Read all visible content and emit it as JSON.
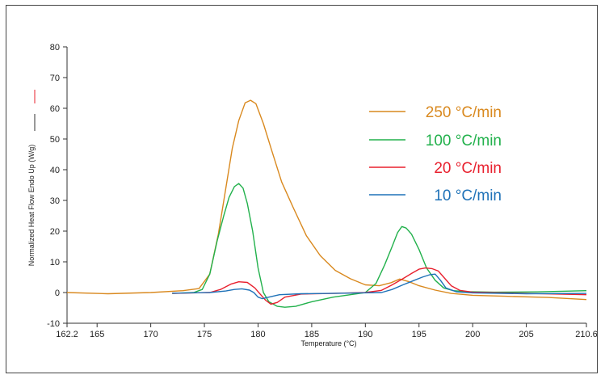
{
  "chart_data": {
    "type": "line",
    "xlabel": "Temperature (°C)",
    "ylabel": "Normalized Heat Flow Endo Up (W/g)",
    "xlim": [
      162.2,
      210.6
    ],
    "ylim": [
      -10,
      80
    ],
    "x_ticks": [
      162.2,
      165,
      170,
      175,
      180,
      185,
      190,
      195,
      200,
      205,
      210.6
    ],
    "x_tick_labels": [
      "162.2",
      "165",
      "170",
      "175",
      "180",
      "185",
      "190",
      "195",
      "200",
      "205",
      "210.6"
    ],
    "y_ticks": [
      -10,
      0,
      10,
      20,
      30,
      40,
      50,
      60,
      70,
      80
    ],
    "y_tick_labels": [
      "-10",
      "0",
      "10",
      "20",
      "30",
      "40",
      "50",
      "60",
      "70",
      "80"
    ],
    "grid": false,
    "legend_placement": "top-right",
    "series": [
      {
        "name": "250 °C/min",
        "color": "#d9891f",
        "x": [
          162.2,
          166,
          170,
          173,
          174.5,
          175.5,
          176.3,
          177,
          177.6,
          178.2,
          178.8,
          179.3,
          179.8,
          180.5,
          181.3,
          182.2,
          183.3,
          184.5,
          185.8,
          187.2,
          188.6,
          190,
          191.3,
          192.4,
          193.2,
          194,
          195,
          196.5,
          198,
          200,
          203,
          207,
          210.6
        ],
        "values": [
          0,
          -0.4,
          0,
          0.6,
          1.3,
          6,
          19,
          34,
          47,
          56,
          61.8,
          62.6,
          61.5,
          55,
          46,
          36,
          27.5,
          18.5,
          12,
          7.2,
          4.5,
          2.5,
          2.2,
          3.2,
          4.4,
          3.6,
          2.2,
          0.8,
          -0.3,
          -0.9,
          -1.2,
          -1.6,
          -2.3
        ]
      },
      {
        "name": "100 °C/min",
        "color": "#22b14c",
        "x": [
          172,
          174,
          174.8,
          175.5,
          176.2,
          176.8,
          177.3,
          177.8,
          178.2,
          178.6,
          179,
          179.5,
          180,
          180.5,
          181,
          181.8,
          182.5,
          183.5,
          185,
          187,
          189,
          190,
          191,
          191.8,
          192.5,
          193,
          193.4,
          193.8,
          194.3,
          195,
          195.7,
          196.5,
          197.3,
          198.2,
          199.5,
          202,
          206,
          210.6
        ],
        "values": [
          -0.3,
          0,
          1,
          6,
          17,
          25,
          31,
          34.5,
          35.5,
          34,
          29,
          20,
          8,
          0,
          -3,
          -4.5,
          -4.8,
          -4.5,
          -3,
          -1.5,
          -0.5,
          0,
          3,
          9,
          15,
          19.5,
          21.5,
          21,
          19,
          14,
          8,
          4,
          1.5,
          0.6,
          0.3,
          0.1,
          0.2,
          0.6
        ]
      },
      {
        "name": "20 °C/min",
        "color": "#e8202e",
        "x": [
          172,
          175.5,
          176.5,
          177.5,
          178.2,
          179,
          179.7,
          180.2,
          180.7,
          181.2,
          181.8,
          182.5,
          184,
          187,
          190,
          191.5,
          192.5,
          193.5,
          194.3,
          195,
          195.6,
          196.2,
          196.8,
          197.3,
          198,
          198.8,
          200,
          205,
          210.6
        ],
        "values": [
          -0.3,
          0,
          1,
          2.8,
          3.5,
          3.3,
          1.5,
          -0.5,
          -2.5,
          -3.8,
          -3.2,
          -1.5,
          -0.5,
          -0.3,
          0,
          0.7,
          2.5,
          4.5,
          6.2,
          7.6,
          8,
          7.8,
          7,
          5,
          2.2,
          0.7,
          0.1,
          -0.3,
          -0.7
        ]
      },
      {
        "name": "10 °C/min",
        "color": "#1f72b8",
        "x": [
          172,
          175.5,
          177,
          177.8,
          178.5,
          179.2,
          179.6,
          180,
          180.4,
          181,
          182,
          184,
          188,
          191.5,
          192.5,
          193.5,
          194.5,
          195.3,
          196,
          196.5,
          197,
          197.5,
          198.5,
          200,
          205,
          210.6
        ],
        "values": [
          -0.2,
          0,
          0.5,
          1,
          1.2,
          0.8,
          0,
          -1.5,
          -2,
          -1.5,
          -0.7,
          -0.4,
          -0.2,
          0,
          1,
          2.5,
          3.9,
          5,
          5.8,
          6,
          4,
          1.5,
          0.2,
          -0.1,
          -0.4,
          -0.3
        ]
      }
    ]
  },
  "y_marker_colors": {
    "top": "#e8202e",
    "bottom": "#333333"
  }
}
